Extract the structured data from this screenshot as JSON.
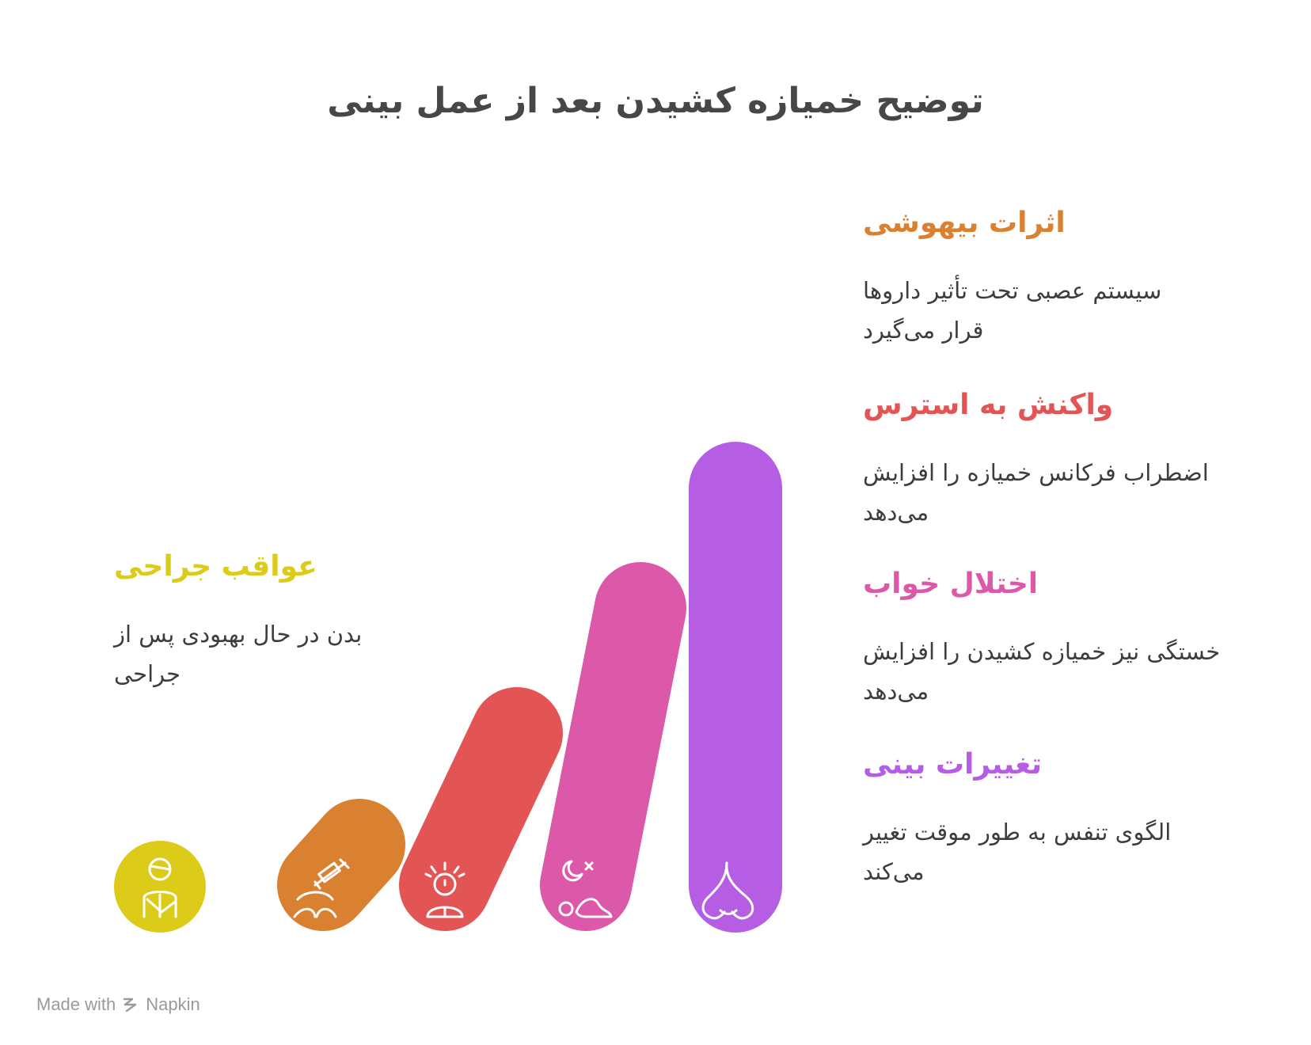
{
  "title": "توضیح خمیازه کشیدن بعد از عمل بینی",
  "items": [
    {
      "id": "anesthesia",
      "heading": "اثرات بیهوشی",
      "description_line1": "سیستم عصبی تحت تأثیر داروها",
      "description_line2": "قرار می‌گیرد",
      "color": "#D98130",
      "icon": "syringe-person-icon"
    },
    {
      "id": "stress",
      "heading": "واکنش به استرس",
      "description_line1": "اضطراب فرکانس خمیازه را افزایش",
      "description_line2": "می‌دهد",
      "color": "#E35555",
      "icon": "stressed-person-icon"
    },
    {
      "id": "sleep",
      "heading": "اختلال خواب",
      "description_line1": "خستگی نیز خمیازه کشیدن را افزایش",
      "description_line2": "می‌دهد",
      "color": "#DC58A8",
      "icon": "sleep-moon-icon"
    },
    {
      "id": "nasal",
      "heading": "تغییرات بینی",
      "description_line1": "الگوی تنفس به طور موقت تغییر",
      "description_line2": "می‌کند",
      "color": "#B55EE4",
      "icon": "nose-icon"
    },
    {
      "id": "surgery",
      "heading": "عواقب جراحی",
      "description_line1": "بدن در حال بهبودی پس از",
      "description_line2": "جراحی",
      "color": "#DDCB19",
      "icon": "bandaged-person-icon"
    }
  ],
  "footer": {
    "made_with": "Made with",
    "brand": "Napkin"
  }
}
